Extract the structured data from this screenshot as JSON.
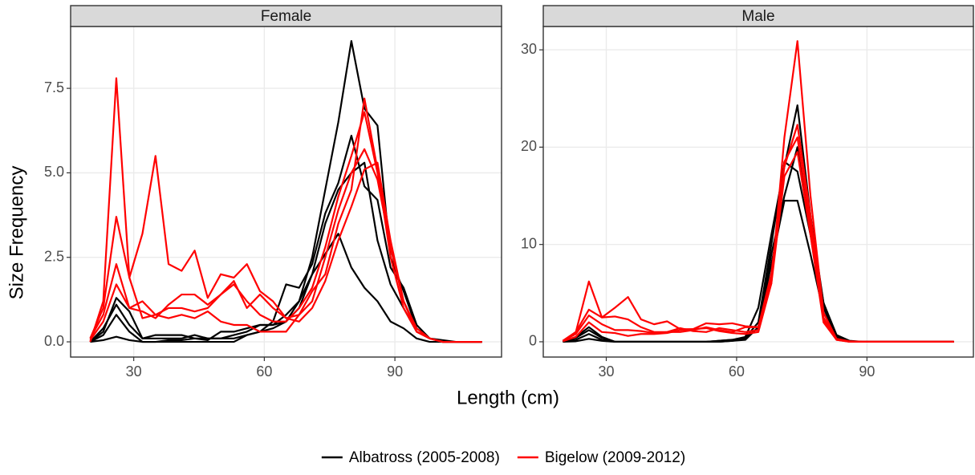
{
  "x_label": "Length (cm)",
  "y_label": "Size Frequency",
  "legend_position": "bottom",
  "chart_data": [
    {
      "type": "line",
      "title": "Female",
      "grid": true,
      "x": [
        20,
        23,
        26,
        29,
        32,
        35,
        38,
        41,
        44,
        47,
        50,
        53,
        56,
        59,
        62,
        65,
        68,
        71,
        74,
        77,
        80,
        83,
        86,
        89,
        92,
        95,
        98,
        101,
        104,
        107,
        110
      ],
      "xlim": [
        15.5,
        114.5
      ],
      "xticks": [
        30,
        60,
        90
      ],
      "ylim": [
        -0.45,
        9.33
      ],
      "yticks": [
        {
          "value": 0,
          "label": "0.0"
        },
        2.5,
        {
          "value": 5,
          "label": "5.0"
        },
        7.5
      ],
      "series": [
        {
          "name": "Albatross (2005-2008)",
          "color": "#000000",
          "values": [
            [
              0,
              0.3,
              1.3,
              0.9,
              0.1,
              0.1,
              0.1,
              0.1,
              0.2,
              0.1,
              0.1,
              0.2,
              0.3,
              0.5,
              0.5,
              0.8,
              1.2,
              2.5,
              4.5,
              6.5,
              8.9,
              6.9,
              6.4,
              2.5,
              1.5,
              0.4,
              0.1,
              0.05,
              0,
              0,
              0
            ],
            [
              0,
              0.4,
              1.1,
              0.5,
              0.1,
              0.2,
              0.2,
              0.2,
              0.1,
              0.1,
              0.1,
              0.1,
              0.2,
              0.3,
              0.6,
              1.7,
              1.6,
              2.3,
              3.8,
              4.7,
              6.1,
              4.6,
              4.2,
              2.2,
              1.6,
              0.5,
              0.1,
              0,
              0,
              0,
              0
            ],
            [
              0,
              0.2,
              0.8,
              0.3,
              0,
              0,
              0.05,
              0.05,
              0.1,
              0.05,
              0.3,
              0.3,
              0.4,
              0.5,
              0.5,
              0.6,
              1.0,
              2.0,
              3.5,
              4.5,
              5.0,
              5.3,
              3.0,
              1.7,
              1.0,
              0.3,
              0.1,
              0,
              0,
              0,
              0
            ],
            [
              0,
              0.05,
              0.15,
              0.05,
              0,
              0,
              0,
              0,
              0,
              0,
              0,
              0,
              0.2,
              0.3,
              0.4,
              0.6,
              1.2,
              2.0,
              2.6,
              3.2,
              2.2,
              1.6,
              1.2,
              0.6,
              0.4,
              0.1,
              0,
              0,
              0,
              0,
              0
            ]
          ]
        },
        {
          "name": "Bigelow (2009-2012)",
          "color": "#ff0000",
          "values": [
            [
              0,
              1.2,
              7.8,
              1.9,
              0.7,
              0.8,
              0.7,
              0.8,
              0.7,
              0.9,
              0.6,
              0.5,
              0.5,
              0.3,
              0.3,
              0.3,
              0.8,
              1.5,
              2.0,
              3.5,
              4.5,
              7.2,
              5.1,
              2.5,
              1.0,
              0.3,
              0.1,
              0,
              0,
              0,
              0
            ],
            [
              0.1,
              1.0,
              3.7,
              1.9,
              3.2,
              5.5,
              2.3,
              2.1,
              2.7,
              1.3,
              2.0,
              1.9,
              2.3,
              1.5,
              1.2,
              0.7,
              0.8,
              1.2,
              2.5,
              3.9,
              5.0,
              5.7,
              4.8,
              2.8,
              1.2,
              0.3,
              0.1,
              0,
              0,
              0,
              0
            ],
            [
              0.1,
              0.8,
              2.3,
              1.0,
              1.2,
              0.8,
              1.0,
              1.0,
              0.9,
              1.0,
              1.4,
              1.8,
              1.0,
              1.4,
              1.0,
              0.7,
              0.6,
              1.0,
              1.8,
              3.0,
              4.0,
              5.1,
              5.3,
              3.0,
              1.2,
              0.4,
              0.1,
              0,
              0,
              0,
              0
            ],
            [
              0.05,
              0.6,
              1.7,
              1.0,
              0.9,
              0.7,
              1.1,
              1.4,
              1.4,
              1.1,
              1.4,
              1.7,
              1.2,
              0.8,
              0.6,
              0.6,
              1.0,
              1.6,
              2.8,
              4.3,
              5.5,
              6.8,
              5.0,
              2.8,
              1.2,
              0.3,
              0.1,
              0,
              0,
              0,
              0
            ]
          ]
        }
      ]
    },
    {
      "type": "line",
      "title": "Male",
      "grid": true,
      "x": [
        20,
        23,
        26,
        29,
        32,
        35,
        38,
        41,
        44,
        47,
        50,
        53,
        56,
        59,
        62,
        65,
        68,
        71,
        74,
        77,
        80,
        83,
        86,
        89,
        92,
        95,
        98,
        101,
        104,
        107,
        110
      ],
      "xlim": [
        15.5,
        114.5
      ],
      "xticks": [
        30,
        60,
        90
      ],
      "ylim": [
        -1.57,
        32.4
      ],
      "yticks": [
        0,
        10,
        20,
        30
      ],
      "series": [
        {
          "name": "Albatross (2005-2008)",
          "color": "#000000",
          "values": [
            [
              0,
              0.5,
              1.5,
              0.5,
              0,
              0,
              0,
              0,
              0,
              0,
              0,
              0,
              0.1,
              0.2,
              0.5,
              3.5,
              11,
              18,
              24.3,
              13,
              4,
              0.7,
              0.1,
              0,
              0,
              0,
              0,
              0,
              0,
              0,
              0
            ],
            [
              0,
              0.4,
              1.2,
              0.4,
              0,
              0,
              0,
              0,
              0,
              0,
              0,
              0,
              0.1,
              0.2,
              0.4,
              2,
              10,
              18.5,
              17.5,
              11,
              3.5,
              0.5,
              0,
              0,
              0,
              0,
              0,
              0,
              0,
              0,
              0
            ],
            [
              0,
              0.2,
              0.8,
              0.2,
              0,
              0,
              0,
              0,
              0,
              0,
              0,
              0,
              0,
              0.1,
              0.3,
              1.5,
              8,
              14.5,
              14.5,
              9,
              3,
              0.4,
              0,
              0,
              0,
              0,
              0,
              0,
              0,
              0,
              0
            ],
            [
              0,
              0.05,
              0.3,
              0.1,
              0,
              0,
              0,
              0,
              0,
              0,
              0,
              0,
              0,
              0.1,
              0.2,
              1.5,
              9,
              15,
              20,
              12,
              4,
              0.5,
              0,
              0,
              0,
              0,
              0,
              0,
              0,
              0,
              0
            ]
          ]
        },
        {
          "name": "Bigelow (2009-2012)",
          "color": "#ff0000",
          "values": [
            [
              0.1,
              1,
              6.2,
              2.5,
              2.6,
              2.3,
              1.5,
              1,
              1,
              1,
              1.2,
              1.5,
              1.2,
              1,
              1.5,
              1.5,
              6,
              21,
              30.9,
              15,
              3,
              0.3,
              0.05,
              0,
              0,
              0,
              0,
              0,
              0,
              0,
              0
            ],
            [
              0.1,
              1,
              3.3,
              2.5,
              3.5,
              4.6,
              2.3,
              1.8,
              2.1,
              1.3,
              1.3,
              1.9,
              1.8,
              1.9,
              1.6,
              1.5,
              7,
              18,
              22.3,
              13,
              2.5,
              0.3,
              0,
              0,
              0,
              0,
              0,
              0,
              0,
              0,
              0
            ],
            [
              0.1,
              0.8,
              2.7,
              1.8,
              1.2,
              1.2,
              1.1,
              0.9,
              1.0,
              1.4,
              1.1,
              1.0,
              1.4,
              1.2,
              1.0,
              1.2,
              6.5,
              18.5,
              21,
              12,
              2.2,
              0.2,
              0,
              0,
              0,
              0,
              0,
              0,
              0,
              0,
              0
            ],
            [
              0.05,
              0.5,
              2.0,
              1.0,
              0.9,
              0.6,
              0.8,
              0.8,
              0.9,
              1.2,
              1.3,
              1.4,
              1.1,
              0.9,
              0.8,
              1.0,
              6,
              17,
              19.5,
              11,
              2,
              0.2,
              0,
              0,
              0,
              0,
              0,
              0,
              0,
              0,
              0
            ]
          ]
        }
      ]
    }
  ]
}
